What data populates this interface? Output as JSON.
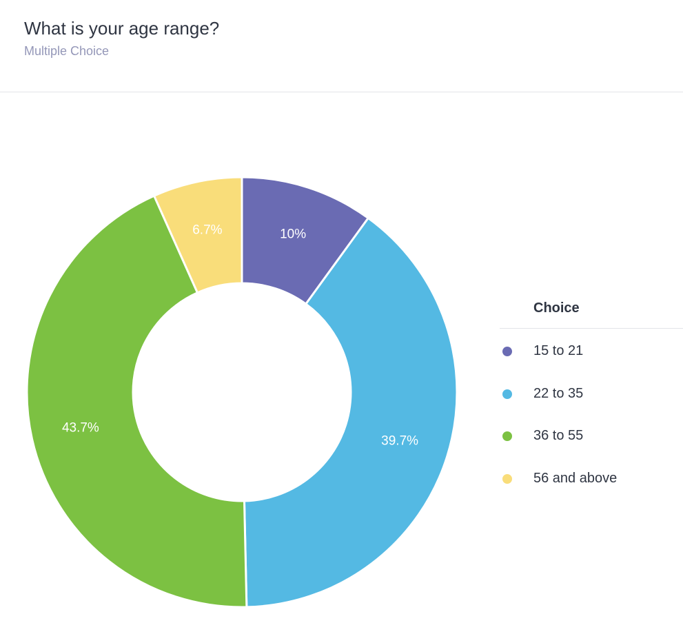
{
  "question": {
    "title": "What is your age range?",
    "type": "Multiple Choice"
  },
  "chart_data": {
    "type": "pie",
    "donut": true,
    "categories": [
      "15 to 21",
      "22 to 35",
      "36 to 55",
      "56 and above"
    ],
    "values": [
      10,
      39.7,
      43.7,
      6.7
    ],
    "labels": [
      "10%",
      "39.7%",
      "43.7%",
      "6.7%"
    ],
    "colors": [
      "#6a6bb3",
      "#54b9e3",
      "#7cc142",
      "#f9dd7a"
    ],
    "legend_title": "Choice",
    "legend_position": "right",
    "start_angle": "top",
    "direction": "clockwise"
  }
}
